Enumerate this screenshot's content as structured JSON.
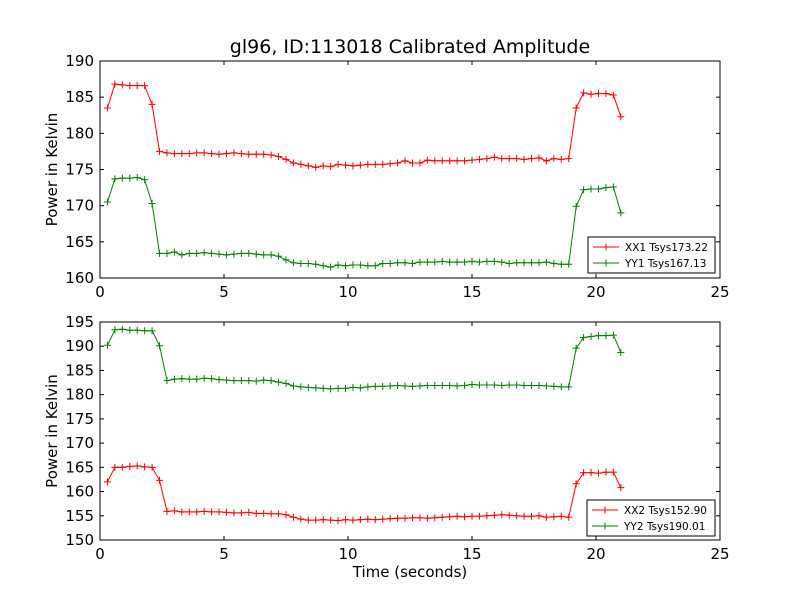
{
  "chart_data": [
    {
      "type": "line",
      "title": "gl96, ID:113018 Calibrated Amplitude",
      "xlabel": "",
      "ylabel": "Power in Kelvin",
      "xlim": [
        0,
        25
      ],
      "ylim": [
        160,
        190
      ],
      "xticks": [
        "0",
        "5",
        "10",
        "15",
        "20",
        "25"
      ],
      "yticks": [
        "160",
        "165",
        "170",
        "175",
        "180",
        "185",
        "190"
      ],
      "grid": false,
      "legend_position": "lower-right",
      "x": [
        0.3,
        0.6,
        0.9,
        1.2,
        1.5,
        1.8,
        2.1,
        2.4,
        2.7,
        3.0,
        3.3,
        3.6,
        3.9,
        4.2,
        4.5,
        4.8,
        5.1,
        5.4,
        5.7,
        6.0,
        6.3,
        6.6,
        6.9,
        7.2,
        7.5,
        7.8,
        8.1,
        8.4,
        8.7,
        9.0,
        9.3,
        9.6,
        9.9,
        10.2,
        10.5,
        10.8,
        11.1,
        11.4,
        11.7,
        12.0,
        12.3,
        12.6,
        12.9,
        13.2,
        13.5,
        13.8,
        14.1,
        14.4,
        14.7,
        15.0,
        15.3,
        15.6,
        15.9,
        16.2,
        16.5,
        16.8,
        17.1,
        17.4,
        17.7,
        18.0,
        18.3,
        18.6,
        18.9,
        19.2,
        19.5,
        19.8,
        20.1,
        20.4,
        20.7,
        21.0
      ],
      "series": [
        {
          "name": "XX1 Tsys173.22",
          "color": "#ff0000",
          "values": [
            183.5,
            186.8,
            186.7,
            186.6,
            186.6,
            186.6,
            184.0,
            177.5,
            177.3,
            177.2,
            177.2,
            177.2,
            177.3,
            177.3,
            177.2,
            177.1,
            177.2,
            177.3,
            177.2,
            177.1,
            177.1,
            177.1,
            177.0,
            176.8,
            176.4,
            175.9,
            175.7,
            175.5,
            175.3,
            175.5,
            175.4,
            175.7,
            175.6,
            175.5,
            175.6,
            175.7,
            175.7,
            175.7,
            175.8,
            175.9,
            176.2,
            175.9,
            175.9,
            176.3,
            176.2,
            176.2,
            176.2,
            176.2,
            176.2,
            176.3,
            176.4,
            176.5,
            176.7,
            176.5,
            176.5,
            176.5,
            176.4,
            176.5,
            176.6,
            176.2,
            176.5,
            176.4,
            176.5,
            183.5,
            185.6,
            185.4,
            185.5,
            185.5,
            185.3,
            182.3
          ]
        },
        {
          "name": "YY1 Tsys167.13",
          "color": "#008000",
          "values": [
            170.5,
            173.7,
            173.8,
            173.8,
            173.9,
            173.6,
            170.3,
            163.4,
            163.4,
            163.6,
            163.2,
            163.4,
            163.4,
            163.5,
            163.4,
            163.3,
            163.2,
            163.3,
            163.4,
            163.4,
            163.3,
            163.2,
            163.2,
            163.0,
            162.5,
            162.1,
            162.0,
            162.0,
            161.9,
            161.7,
            161.5,
            161.8,
            161.7,
            161.8,
            161.8,
            161.7,
            161.7,
            162.0,
            162.0,
            162.1,
            162.1,
            162.0,
            162.2,
            162.2,
            162.2,
            162.3,
            162.2,
            162.2,
            162.2,
            162.3,
            162.2,
            162.3,
            162.3,
            162.2,
            162.0,
            162.1,
            162.1,
            162.1,
            162.1,
            162.2,
            162.0,
            161.9,
            161.9,
            169.9,
            172.2,
            172.3,
            172.3,
            172.5,
            172.6,
            169.0
          ]
        }
      ]
    },
    {
      "type": "line",
      "title": "",
      "xlabel": "Time (seconds)",
      "ylabel": "Power in Kelvin",
      "xlim": [
        0,
        25
      ],
      "ylim": [
        150,
        195
      ],
      "xticks": [
        "0",
        "5",
        "10",
        "15",
        "20",
        "25"
      ],
      "yticks": [
        "150",
        "155",
        "160",
        "165",
        "170",
        "175",
        "180",
        "185",
        "190",
        "195"
      ],
      "grid": false,
      "legend_position": "lower-right",
      "x": [
        0.3,
        0.6,
        0.9,
        1.2,
        1.5,
        1.8,
        2.1,
        2.4,
        2.7,
        3.0,
        3.3,
        3.6,
        3.9,
        4.2,
        4.5,
        4.8,
        5.1,
        5.4,
        5.7,
        6.0,
        6.3,
        6.6,
        6.9,
        7.2,
        7.5,
        7.8,
        8.1,
        8.4,
        8.7,
        9.0,
        9.3,
        9.6,
        9.9,
        10.2,
        10.5,
        10.8,
        11.1,
        11.4,
        11.7,
        12.0,
        12.3,
        12.6,
        12.9,
        13.2,
        13.5,
        13.8,
        14.1,
        14.4,
        14.7,
        15.0,
        15.3,
        15.6,
        15.9,
        16.2,
        16.5,
        16.8,
        17.1,
        17.4,
        17.7,
        18.0,
        18.3,
        18.6,
        18.9,
        19.2,
        19.5,
        19.8,
        20.1,
        20.4,
        20.7,
        21.0
      ],
      "series": [
        {
          "name": "XX2 Tsys152.90",
          "color": "#ff0000",
          "values": [
            162.0,
            165.0,
            165.0,
            165.2,
            165.3,
            165.1,
            165.0,
            162.3,
            155.9,
            156.0,
            155.8,
            155.8,
            155.8,
            155.9,
            155.8,
            155.8,
            155.7,
            155.6,
            155.6,
            155.7,
            155.5,
            155.5,
            155.4,
            155.4,
            155.2,
            154.7,
            154.3,
            154.1,
            154.1,
            154.2,
            154.1,
            154.0,
            154.2,
            154.1,
            154.2,
            154.3,
            154.2,
            154.3,
            154.4,
            154.5,
            154.5,
            154.6,
            154.6,
            154.5,
            154.6,
            154.7,
            154.8,
            154.9,
            154.8,
            154.9,
            154.9,
            155.0,
            155.1,
            155.2,
            155.1,
            155.0,
            154.9,
            154.9,
            155.0,
            154.7,
            154.8,
            154.9,
            154.7,
            161.6,
            163.9,
            163.9,
            163.8,
            164.0,
            164.0,
            160.8
          ]
        },
        {
          "name": "YY2 Tsys190.01",
          "color": "#008000",
          "values": [
            190.2,
            193.4,
            193.5,
            193.3,
            193.3,
            193.2,
            193.2,
            190.1,
            182.9,
            183.2,
            183.3,
            183.2,
            183.2,
            183.4,
            183.3,
            183.1,
            183.0,
            182.9,
            182.9,
            182.9,
            182.8,
            183.0,
            182.9,
            182.6,
            182.3,
            181.8,
            181.6,
            181.5,
            181.4,
            181.3,
            181.2,
            181.3,
            181.3,
            181.5,
            181.4,
            181.6,
            181.7,
            181.7,
            181.8,
            181.9,
            181.8,
            181.7,
            181.8,
            181.9,
            181.9,
            181.9,
            181.9,
            181.8,
            181.9,
            182.1,
            182.0,
            182.0,
            182.0,
            181.9,
            182.0,
            182.0,
            181.9,
            181.9,
            181.9,
            181.8,
            181.7,
            181.6,
            181.6,
            189.6,
            191.8,
            192.0,
            192.2,
            192.2,
            192.3,
            188.7
          ]
        }
      ]
    }
  ]
}
